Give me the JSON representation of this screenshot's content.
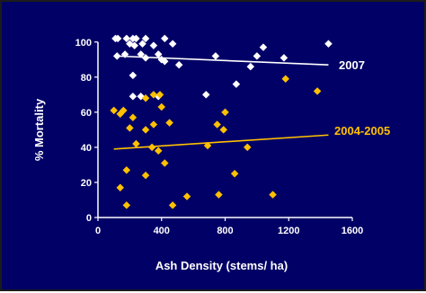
{
  "chart_data": {
    "type": "scatter",
    "title": "",
    "xlabel": "Ash Density (stems/ ha)",
    "ylabel": "% Mortality",
    "xlim": [
      0,
      1600
    ],
    "ylim": [
      0,
      105
    ],
    "xticks": [
      0,
      400,
      800,
      1200,
      1600
    ],
    "yticks": [
      0,
      20,
      40,
      60,
      80,
      100
    ],
    "grid": false,
    "background_color": "#000066",
    "axis_color": "#ffffff",
    "series": [
      {
        "name": "2007",
        "marker": "diamond",
        "color": "#ffffff",
        "trendline": [
          [
            120,
            92
          ],
          [
            1450,
            87
          ]
        ],
        "points": [
          [
            110,
            102
          ],
          [
            125,
            102
          ],
          [
            180,
            102
          ],
          [
            220,
            102
          ],
          [
            240,
            102
          ],
          [
            300,
            102
          ],
          [
            420,
            102
          ],
          [
            200,
            99
          ],
          [
            230,
            98
          ],
          [
            280,
            99
          ],
          [
            350,
            98
          ],
          [
            470,
            99
          ],
          [
            1450,
            99
          ],
          [
            120,
            92
          ],
          [
            170,
            93
          ],
          [
            270,
            93
          ],
          [
            300,
            91
          ],
          [
            380,
            93
          ],
          [
            400,
            90
          ],
          [
            420,
            89
          ],
          [
            510,
            87
          ],
          [
            740,
            92
          ],
          [
            960,
            86
          ],
          [
            1000,
            92
          ],
          [
            1040,
            97
          ],
          [
            1170,
            91
          ],
          [
            220,
            81
          ],
          [
            870,
            76
          ],
          [
            220,
            69
          ],
          [
            270,
            69
          ],
          [
            380,
            69
          ],
          [
            680,
            70
          ]
        ]
      },
      {
        "name": "2004-2005",
        "marker": "diamond",
        "color": "#ffc000",
        "trendline": [
          [
            100,
            39
          ],
          [
            1450,
            47
          ]
        ],
        "points": [
          [
            100,
            61
          ],
          [
            140,
            59
          ],
          [
            160,
            61
          ],
          [
            220,
            57
          ],
          [
            300,
            68
          ],
          [
            350,
            70
          ],
          [
            390,
            70
          ],
          [
            400,
            63
          ],
          [
            200,
            51
          ],
          [
            300,
            50
          ],
          [
            350,
            53
          ],
          [
            450,
            54
          ],
          [
            790,
            50
          ],
          [
            800,
            60
          ],
          [
            750,
            53
          ],
          [
            1180,
            79
          ],
          [
            1380,
            72
          ],
          [
            240,
            42
          ],
          [
            340,
            40
          ],
          [
            380,
            38
          ],
          [
            690,
            41
          ],
          [
            940,
            40
          ],
          [
            420,
            31
          ],
          [
            180,
            27
          ],
          [
            300,
            24
          ],
          [
            860,
            25
          ],
          [
            140,
            17
          ],
          [
            180,
            7
          ],
          [
            470,
            7
          ],
          [
            560,
            12
          ],
          [
            760,
            13
          ],
          [
            1100,
            13
          ]
        ]
      }
    ],
    "annotations": [
      {
        "text": "2007",
        "color": "#ffffff",
        "near_series": "2007",
        "position": "end-of-trendline"
      },
      {
        "text": "2004-2005",
        "color": "#ffc000",
        "near_series": "2004-2005",
        "position": "end-of-trendline"
      }
    ]
  }
}
